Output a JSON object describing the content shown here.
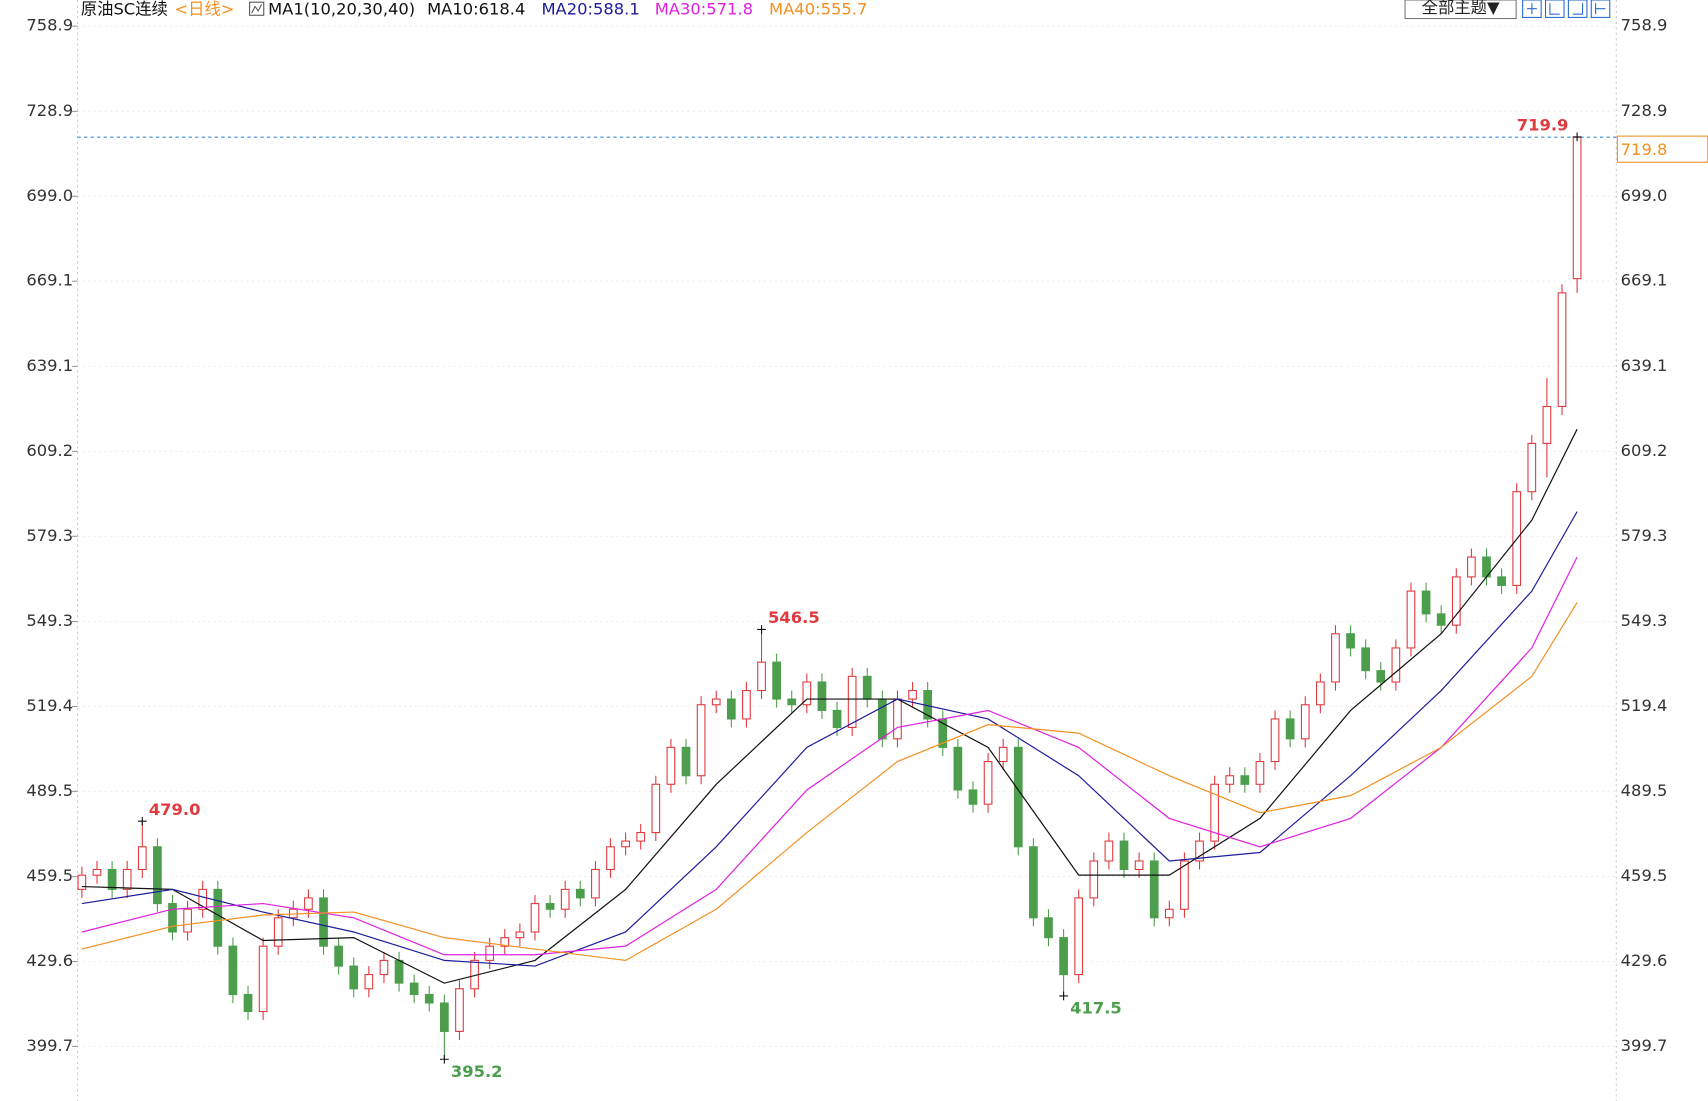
{
  "chart_data": {
    "type": "candlestick",
    "title": "原油SC连续",
    "period": "<日线>",
    "indicator": "MA1(10,20,30,40)",
    "theme_button": "全部主题▼",
    "up_color": "#e0393e",
    "down_color": "#4c9e4c",
    "open": [
      455,
      460,
      462,
      455,
      462,
      470,
      450,
      440,
      448,
      455,
      435,
      418,
      412,
      435,
      445,
      448,
      452,
      435,
      428,
      420,
      425,
      430,
      422,
      418,
      415,
      405,
      420,
      430,
      435,
      438,
      440,
      450,
      448,
      455,
      452,
      462,
      470,
      472,
      475,
      492,
      505,
      495,
      520,
      522,
      515,
      525,
      535,
      522,
      520,
      528,
      518,
      512,
      530,
      522,
      508,
      522,
      525,
      515,
      505,
      490,
      485,
      500,
      505,
      470,
      445,
      438,
      425,
      452,
      465,
      472,
      462,
      465,
      445,
      448,
      465,
      472,
      492,
      495,
      492,
      500,
      515,
      508,
      520,
      528,
      545,
      540,
      532,
      528,
      540,
      560,
      552,
      548,
      565,
      572,
      565,
      562,
      595,
      612,
      625,
      670
    ],
    "high": [
      463,
      465,
      465,
      465,
      479.0,
      473,
      453,
      451,
      458,
      458,
      438,
      421,
      438,
      448,
      451,
      455,
      455,
      438,
      431,
      428,
      433,
      433,
      425,
      421,
      418,
      423,
      433,
      438,
      441,
      443,
      453,
      453,
      458,
      458,
      465,
      473,
      475,
      478,
      495,
      508,
      508,
      523,
      525,
      525,
      528,
      546.5,
      538,
      525,
      531,
      531,
      521,
      533,
      533,
      525,
      525,
      528,
      528,
      518,
      508,
      493,
      503,
      508,
      508,
      473,
      448,
      441,
      455,
      468,
      475,
      475,
      468,
      468,
      451,
      468,
      475,
      495,
      498,
      498,
      503,
      518,
      518,
      523,
      531,
      548,
      548,
      543,
      535,
      543,
      563,
      563,
      555,
      568,
      575,
      575,
      568,
      598,
      615,
      635,
      668,
      719.9
    ],
    "low": [
      452,
      457,
      452,
      452,
      459,
      447,
      437,
      437,
      445,
      432,
      415,
      409,
      409,
      432,
      442,
      445,
      432,
      425,
      417,
      417,
      422,
      419,
      415,
      412,
      395.2,
      402,
      417,
      427,
      432,
      435,
      437,
      445,
      445,
      449,
      449,
      459,
      467,
      469,
      472,
      489,
      492,
      492,
      517,
      512,
      512,
      522,
      519,
      517,
      517,
      515,
      509,
      509,
      519,
      505,
      505,
      519,
      512,
      502,
      487,
      482,
      482,
      497,
      467,
      442,
      435,
      417.5,
      422,
      449,
      462,
      459,
      459,
      442,
      442,
      445,
      462,
      469,
      489,
      489,
      489,
      497,
      505,
      505,
      517,
      525,
      537,
      529,
      525,
      525,
      537,
      549,
      545,
      545,
      562,
      562,
      559,
      559,
      592,
      600,
      622,
      665
    ],
    "close": [
      460,
      462,
      455,
      462,
      470,
      450,
      440,
      448,
      455,
      435,
      418,
      412,
      435,
      445,
      448,
      452,
      435,
      428,
      420,
      425,
      430,
      422,
      418,
      415,
      405,
      420,
      430,
      435,
      438,
      440,
      450,
      448,
      455,
      452,
      462,
      470,
      472,
      475,
      492,
      505,
      495,
      520,
      522,
      515,
      525,
      535,
      522,
      520,
      528,
      518,
      512,
      530,
      522,
      508,
      522,
      525,
      515,
      505,
      490,
      485,
      500,
      505,
      470,
      445,
      438,
      425,
      452,
      465,
      472,
      462,
      465,
      445,
      448,
      465,
      472,
      492,
      495,
      492,
      500,
      515,
      508,
      520,
      528,
      545,
      540,
      532,
      528,
      540,
      560,
      552,
      548,
      565,
      572,
      565,
      562,
      595,
      612,
      625,
      665,
      719.8
    ],
    "series": [
      {
        "name": "MA10:618.4",
        "color": "#111111",
        "x": [
          0,
          6,
          12,
          18,
          24,
          30,
          36,
          42,
          48,
          54,
          60,
          66,
          72,
          78,
          84,
          90,
          96,
          99
        ],
        "values": [
          456,
          455,
          437,
          438,
          422,
          430,
          455,
          492,
          522,
          522,
          505,
          460,
          460,
          480,
          518,
          545,
          585,
          617
        ]
      },
      {
        "name": "MA20:588.1",
        "color": "#1c1c9c",
        "x": [
          0,
          6,
          12,
          18,
          24,
          30,
          36,
          42,
          48,
          54,
          60,
          66,
          72,
          78,
          84,
          90,
          96,
          99
        ],
        "values": [
          450,
          455,
          447,
          440,
          430,
          428,
          440,
          470,
          505,
          522,
          515,
          495,
          465,
          468,
          495,
          525,
          560,
          588
        ]
      },
      {
        "name": "MA30:571.8",
        "color": "#e020e0",
        "x": [
          0,
          6,
          12,
          18,
          24,
          30,
          36,
          42,
          48,
          54,
          60,
          66,
          72,
          78,
          84,
          90,
          96,
          99
        ],
        "values": [
          440,
          448,
          450,
          445,
          432,
          432,
          435,
          455,
          490,
          512,
          518,
          505,
          480,
          470,
          480,
          505,
          540,
          572
        ]
      },
      {
        "name": "MA40:555.7",
        "color": "#f39020",
        "x": [
          0,
          6,
          12,
          18,
          24,
          30,
          36,
          42,
          48,
          54,
          60,
          66,
          72,
          78,
          84,
          90,
          96,
          99
        ],
        "values": [
          434,
          442,
          446,
          447,
          438,
          434,
          430,
          448,
          475,
          500,
          513,
          510,
          495,
          482,
          488,
          505,
          530,
          556
        ]
      }
    ],
    "ylim": [
      380.5,
      768.1
    ],
    "yticks": [
      399.7,
      429.6,
      459.5,
      489.5,
      519.4,
      549.3,
      579.3,
      609.2,
      639.1,
      669.1,
      {
        "value": 699,
        "label": "699.0"
      },
      728.9,
      758.9
    ],
    "grid": true,
    "annotations": [
      {
        "value": 479,
        "label": "479.0",
        "index": 4,
        "color": "#e0393e"
      },
      {
        "value": 546.5,
        "label": "546.5",
        "index": 45,
        "color": "#e0393e"
      },
      {
        "value": 719.9,
        "label": "719.9",
        "index": 99,
        "color": "#e0393e"
      },
      {
        "value": 395.2,
        "label": "395.2",
        "index": 24,
        "color": "#4c9e4c"
      },
      {
        "value": 417.5,
        "label": "417.5",
        "index": 65,
        "color": "#4c9e4c"
      }
    ],
    "last_price": {
      "value": 719.8,
      "label": "719.8",
      "color": "#f39020"
    }
  }
}
